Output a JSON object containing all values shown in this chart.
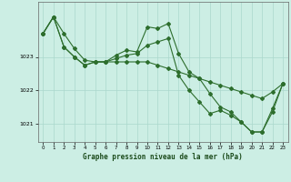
{
  "xlabel": "Graphe pression niveau de la mer (hPa)",
  "bg_color": "#cceee4",
  "grid_color": "#aad8cc",
  "line_color": "#2d6e2d",
  "marker": "D",
  "markersize": 2.0,
  "linewidth": 0.8,
  "xlim": [
    -0.5,
    23.5
  ],
  "ylim": [
    1020.45,
    1024.65
  ],
  "yticks": [
    1021,
    1022,
    1023
  ],
  "xticks": [
    0,
    1,
    2,
    3,
    4,
    5,
    6,
    7,
    8,
    9,
    10,
    11,
    12,
    13,
    14,
    15,
    16,
    17,
    18,
    19,
    20,
    21,
    22,
    23
  ],
  "series": [
    [
      1023.7,
      1024.2,
      1023.7,
      1023.25,
      1022.9,
      1022.85,
      1022.85,
      1022.85,
      1022.85,
      1022.85,
      1022.85,
      1022.75,
      1022.65,
      1022.55,
      1022.45,
      1022.35,
      1022.25,
      1022.15,
      1022.05,
      1021.95,
      1021.85,
      1021.75,
      1021.95,
      1022.2
    ],
    [
      1023.7,
      1024.2,
      1023.3,
      1023.0,
      1022.75,
      1022.85,
      1022.85,
      1023.05,
      1023.2,
      1023.15,
      1023.9,
      1023.85,
      1024.0,
      1023.1,
      1022.55,
      1022.35,
      1021.9,
      1021.5,
      1021.35,
      1021.05,
      1020.75,
      1020.75,
      1021.35,
      1022.2
    ],
    [
      1023.7,
      1024.2,
      1023.3,
      1023.0,
      1022.75,
      1022.85,
      1022.85,
      1022.95,
      1023.05,
      1023.1,
      1023.35,
      1023.45,
      1023.55,
      1022.45,
      1022.0,
      1021.65,
      1021.3,
      1021.4,
      1021.25,
      1021.05,
      1020.75,
      1020.75,
      1021.45,
      1022.2
    ]
  ]
}
